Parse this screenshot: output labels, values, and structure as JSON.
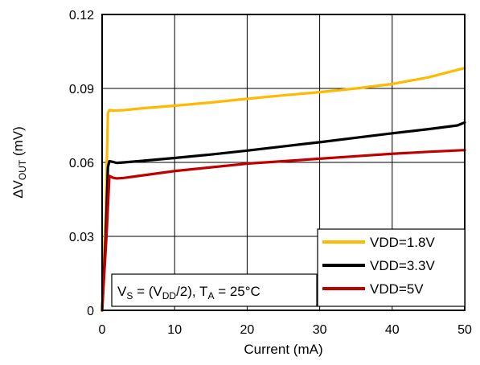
{
  "chart_data": {
    "type": "line",
    "title": "",
    "xlabel": "Current (mA)",
    "ylabel": {
      "prefix": "ΔV",
      "sub": "OUT",
      "suffix": " (mV)"
    },
    "xlim": [
      0,
      50
    ],
    "ylim": [
      0,
      0.12
    ],
    "xticks": [
      0,
      10,
      20,
      30,
      40,
      50
    ],
    "xtick_labels": [
      "0",
      "10",
      "20",
      "30",
      "40",
      "50"
    ],
    "yticks": [
      0,
      0.03,
      0.06,
      0.09,
      0.12
    ],
    "ytick_labels": [
      "0",
      "0.03",
      "0.06",
      "0.09",
      "0.12"
    ],
    "grid": true,
    "legend_position": "bottom-right",
    "annotation": {
      "parts": [
        {
          "t": "V",
          "sub": false
        },
        {
          "t": "S",
          "sub": true
        },
        {
          "t": " = (V",
          "sub": false
        },
        {
          "t": "DD",
          "sub": true
        },
        {
          "t": "/2), T",
          "sub": false
        },
        {
          "t": "A",
          "sub": true
        },
        {
          "t": " = 25°C",
          "sub": false
        }
      ]
    },
    "series": [
      {
        "name": "VDD=1.8V",
        "color": "#ffb900",
        "x": [
          0,
          0.5,
          0.8,
          1,
          1.5,
          2,
          3,
          5,
          10,
          15,
          20,
          25,
          30,
          35,
          40,
          45,
          50
        ],
        "y": [
          0,
          0.04,
          0.08,
          0.0812,
          0.081,
          0.0811,
          0.0812,
          0.0818,
          0.083,
          0.0843,
          0.0858,
          0.0872,
          0.0885,
          0.09,
          0.0918,
          0.0945,
          0.0983
        ]
      },
      {
        "name": "VDD=3.3V",
        "color": "#000000",
        "x": [
          0,
          0.5,
          0.8,
          1,
          1.5,
          2,
          3,
          5,
          10,
          15,
          20,
          25,
          30,
          35,
          40,
          45,
          49,
          50
        ],
        "y": [
          0,
          0.03,
          0.058,
          0.0605,
          0.0602,
          0.0598,
          0.06,
          0.0605,
          0.0618,
          0.0632,
          0.0648,
          0.0665,
          0.0682,
          0.07,
          0.0718,
          0.0735,
          0.075,
          0.0762
        ]
      },
      {
        "name": "VDD=5V",
        "color": "#c00000",
        "x": [
          0,
          0.6,
          1,
          1.5,
          2,
          3,
          5,
          10,
          15,
          20,
          25,
          30,
          35,
          40,
          45,
          50
        ],
        "y": [
          0,
          0.03,
          0.0545,
          0.0538,
          0.0535,
          0.0537,
          0.0545,
          0.0565,
          0.058,
          0.0595,
          0.0605,
          0.0615,
          0.0625,
          0.0635,
          0.0643,
          0.065
        ]
      }
    ]
  }
}
